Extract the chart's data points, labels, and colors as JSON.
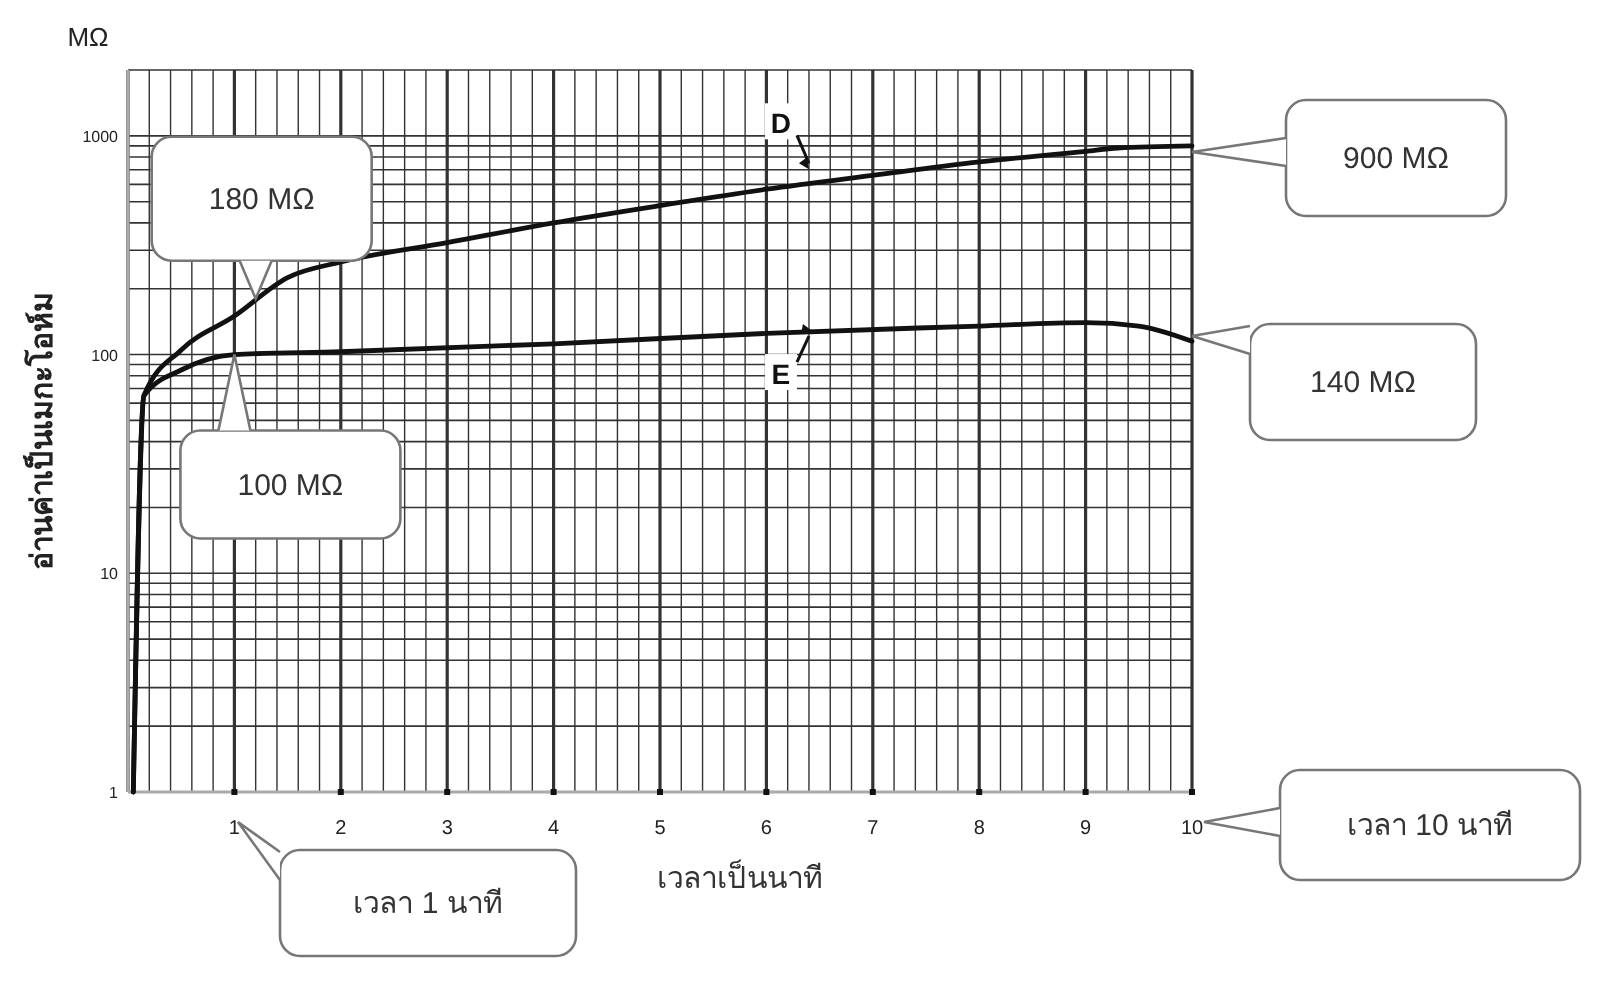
{
  "chart_data": {
    "type": "line",
    "xlabel": "เวลาเป็นนาที",
    "ylabel": "อ่านค่าเป็นเมกะโอห์ม",
    "xlim": [
      0,
      10
    ],
    "xticks": [
      1,
      2,
      3,
      4,
      5,
      6,
      7,
      8,
      9,
      10
    ],
    "ylim": [
      1,
      2000
    ],
    "yticks": [
      1,
      10,
      100,
      1000
    ],
    "log": "y",
    "grid": true,
    "marker": "none",
    "line_style": "solid",
    "series": [
      {
        "name": "D",
        "color": "#111111",
        "x": [
          0.05,
          0.15,
          0.5,
          1,
          1.5,
          2,
          3,
          4,
          5,
          6,
          7,
          8,
          9,
          9.3,
          10
        ],
        "values": [
          1,
          65,
          105,
          150,
          225,
          265,
          325,
          400,
          480,
          570,
          660,
          760,
          850,
          880,
          900
        ]
      },
      {
        "name": "E",
        "color": "#111111",
        "x": [
          0.05,
          0.15,
          0.5,
          1,
          2,
          4,
          6,
          8,
          9,
          9.5,
          10
        ],
        "values": [
          1,
          65,
          85,
          100,
          103,
          112,
          125,
          135,
          140,
          135,
          115
        ]
      }
    ],
    "annotations": [
      "MΩ",
      {
        "text": "180 MΩ",
        "x": 1.2,
        "y": 180
      },
      {
        "text": "100 MΩ",
        "x": 1,
        "y": 100
      },
      "900 MΩ",
      "140 MΩ",
      "เวลา 1 นาที",
      "เวลา 10 นาที"
    ]
  }
}
